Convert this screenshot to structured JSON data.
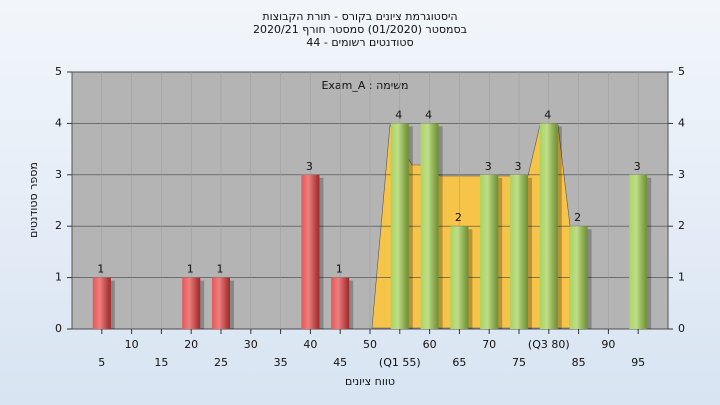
{
  "chart_data": {
    "type": "bar",
    "title_lines": [
      "היסטוגרמת ציונים בקורס - תורת הקבוצות",
      "בסמסטר (01/2020) סמסטר חורף 2020/21",
      "סטודנטים רשומים - 44"
    ],
    "annotation": "משימה : Exam_A",
    "x_label": "טווח ציונים",
    "y_label": "מספר סטודנטים",
    "x": [
      5,
      20,
      25,
      40,
      45,
      55,
      60,
      65,
      70,
      75,
      80,
      85,
      95
    ],
    "values": [
      1,
      1,
      1,
      3,
      1,
      4,
      4,
      2,
      3,
      3,
      4,
      2,
      3
    ],
    "colors": [
      "#e33a3a",
      "#e33a3a",
      "#e33a3a",
      "#e33a3a",
      "#e33a3a",
      "#9ccc48",
      "#9ccc48",
      "#9ccc48",
      "#9ccc48",
      "#9ccc48",
      "#9ccc48",
      "#9ccc48",
      "#9ccc48"
    ],
    "xlim": [
      0,
      100
    ],
    "xticks": [
      5,
      10,
      15,
      20,
      25,
      30,
      35,
      40,
      45,
      50,
      {
        "value": 55,
        "label": "(Q1 55)"
      },
      60,
      65,
      70,
      75,
      {
        "value": 80,
        "label": "(Q3 80)"
      },
      85,
      90,
      95
    ],
    "ylim": [
      0,
      5
    ],
    "yticks": [
      0,
      1,
      2,
      3,
      4,
      5
    ],
    "y2lim": [
      0,
      5
    ],
    "y2ticks": [
      0,
      1,
      2,
      3,
      4,
      5
    ],
    "grid": true
  }
}
